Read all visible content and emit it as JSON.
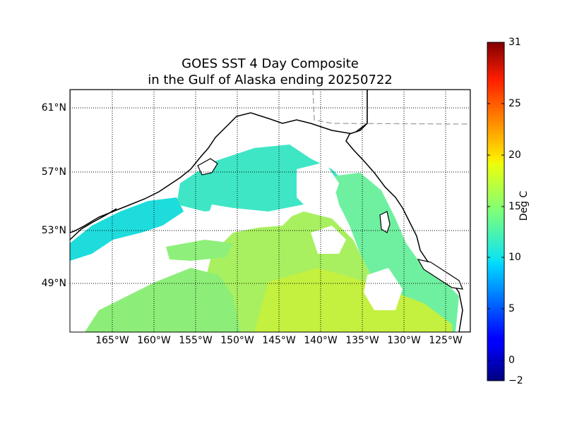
{
  "map": {
    "title_line1": "GOES SST 4 Day Composite",
    "title_line2": "in the Gulf of Alaska ending 20250722",
    "lat_labels": [
      "61°N",
      "57°N",
      "53°N",
      "49°N"
    ],
    "lon_labels": [
      "165°W",
      "160°W",
      "155°W",
      "150°W",
      "145°W",
      "140°W",
      "135°W",
      "130°W",
      "125°W"
    ],
    "grid": true,
    "colors": {
      "frame": "#000000",
      "coastline": "#000000",
      "border": "#999999",
      "sst_cool": "#4fe0c8",
      "sst_mid": "#7cf09a",
      "sst_warm": "#c8f03c",
      "land": "#ffffff"
    }
  },
  "colorbar": {
    "label": "Deg C",
    "tick_labels": [
      "31",
      "25",
      "20",
      "15",
      "10",
      "5",
      "0",
      "−2"
    ],
    "range": [
      -2,
      31
    ],
    "colormap": "jet"
  }
}
